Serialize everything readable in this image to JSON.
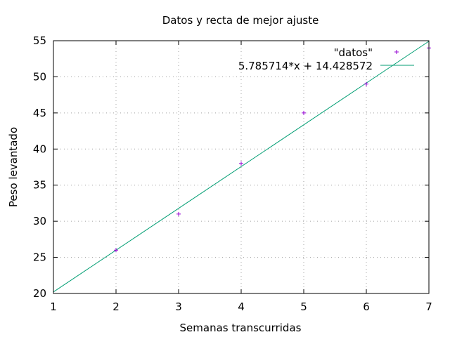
{
  "chart_data": {
    "type": "scatter",
    "title": "Datos y recta de mejor ajuste",
    "xlabel": "Semanas transcurridas",
    "ylabel": "Peso levantado",
    "xlim": [
      1,
      7
    ],
    "ylim": [
      20,
      55
    ],
    "xticks": [
      1,
      2,
      3,
      4,
      5,
      6,
      7
    ],
    "yticks": [
      20,
      25,
      30,
      35,
      40,
      45,
      50,
      55
    ],
    "grid": true,
    "legend_position": "top-right",
    "series": [
      {
        "name": "\"datos\"",
        "kind": "points",
        "marker": "+",
        "color": "#9400d3",
        "x": [
          2,
          3,
          4,
          5,
          6,
          7
        ],
        "y": [
          26,
          31,
          38,
          45,
          49,
          54
        ]
      },
      {
        "name": "5.785714*x + 14.428572",
        "kind": "line",
        "color": "#009e73",
        "slope": 5.785714,
        "intercept": 14.428572
      }
    ]
  }
}
